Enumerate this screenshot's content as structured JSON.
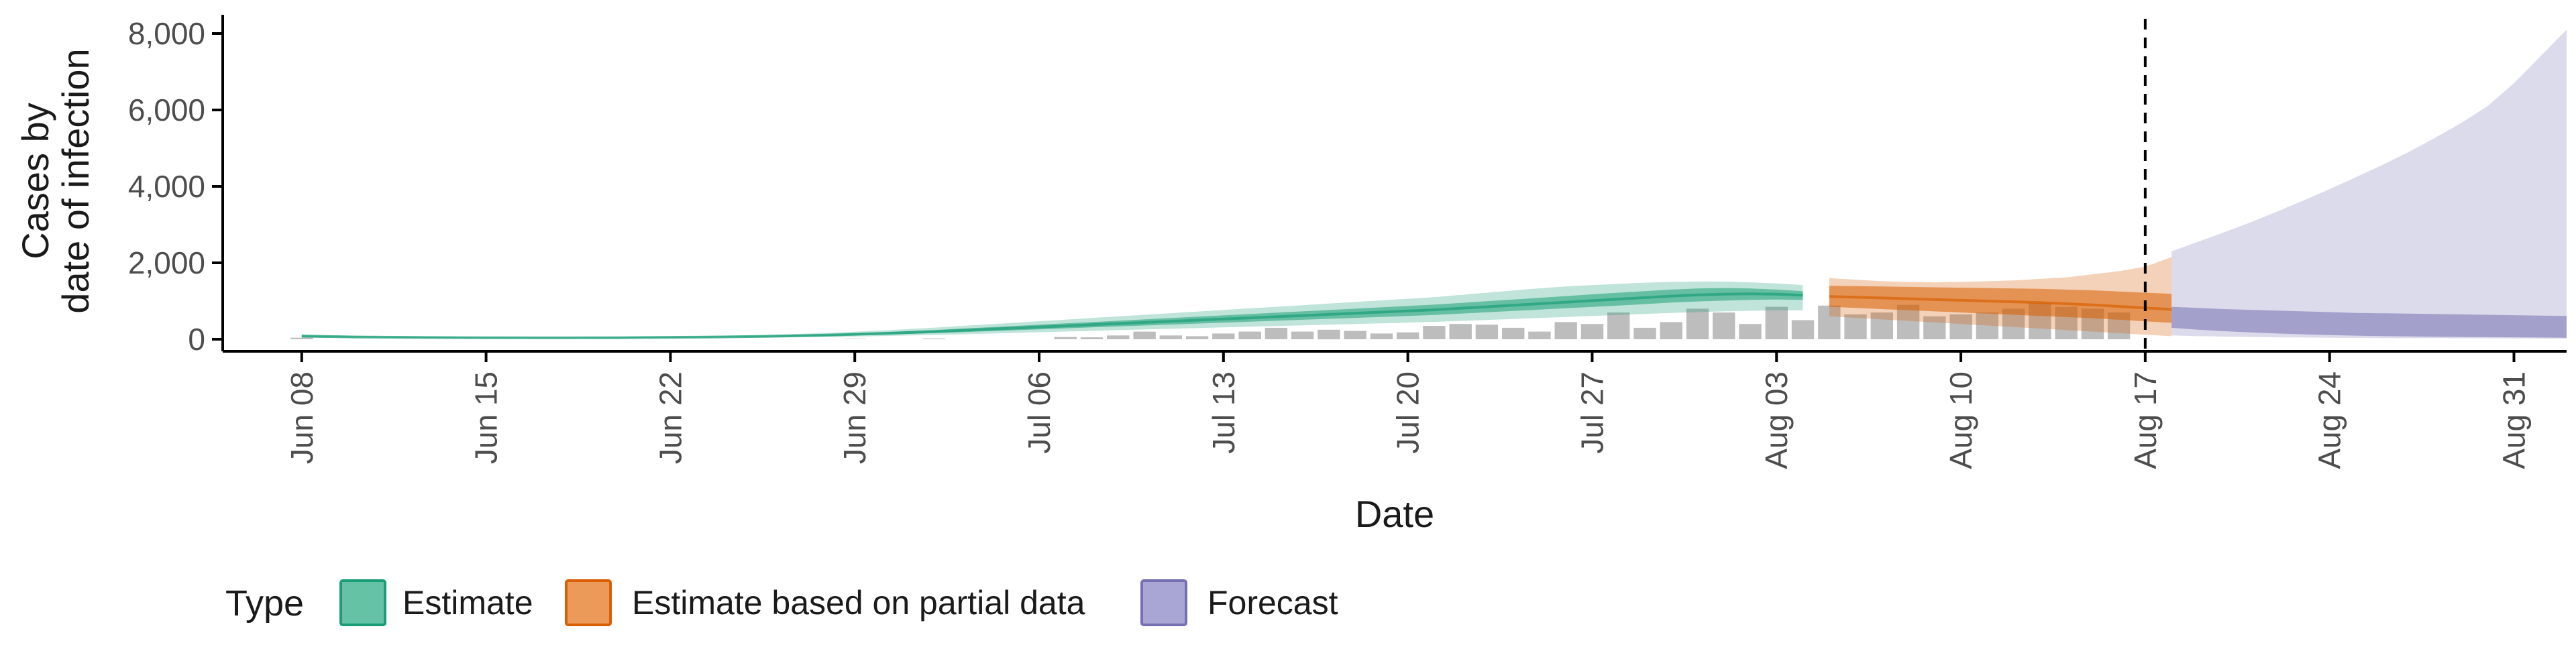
{
  "chart_data": {
    "type": "area",
    "xlabel": "Date",
    "ylabel_lines": [
      "Cases by",
      "date of infection"
    ],
    "ylim": [
      0,
      8000
    ],
    "yticks": [
      0,
      2000,
      4000,
      6000,
      8000
    ],
    "ytick_labels": [
      "0",
      "2,000",
      "4,000",
      "6,000",
      "8,000"
    ],
    "xlim": [
      "2020-06-05",
      "2020-09-02"
    ],
    "xticks": [
      "2020-06-08",
      "2020-06-15",
      "2020-06-22",
      "2020-06-29",
      "2020-07-06",
      "2020-07-13",
      "2020-07-20",
      "2020-07-27",
      "2020-08-03",
      "2020-08-10",
      "2020-08-17",
      "2020-08-24",
      "2020-08-31"
    ],
    "xtick_labels": [
      "Jun 08",
      "Jun 15",
      "Jun 22",
      "Jun 29",
      "Jul 06",
      "Jul 13",
      "Jul 20",
      "Jul 27",
      "Aug 03",
      "Aug 10",
      "Aug 17",
      "Aug 24",
      "Aug 31"
    ],
    "vline": "2020-08-17",
    "grid": false,
    "legend": {
      "position": "bottom",
      "title": "Type",
      "items": [
        {
          "label": "Estimate",
          "fill": "#66c2a5",
          "stroke": "#1b9e77"
        },
        {
          "label": "Estimate based on partial data",
          "fill": "#ec9a5a",
          "stroke": "#d95f02"
        },
        {
          "label": "Forecast",
          "fill": "#a9a6d6",
          "stroke": "#7570b3"
        }
      ]
    },
    "colors": {
      "estimate": "#1b9e77",
      "partial": "#d95f02",
      "forecast": "#7570b3",
      "bars": "#bdbdbd",
      "axis": "#000000"
    },
    "reported_cases": {
      "start": "2020-06-08",
      "values": [
        40,
        0,
        0,
        0,
        0,
        0,
        0,
        0,
        0,
        0,
        0,
        0,
        0,
        0,
        0,
        0,
        0,
        0,
        0,
        0,
        0,
        10,
        0,
        0,
        20,
        0,
        0,
        0,
        0,
        60,
        50,
        100,
        200,
        100,
        80,
        150,
        200,
        300,
        200,
        250,
        220,
        150,
        180,
        350,
        400,
        380,
        300,
        200,
        450,
        400,
        700,
        300,
        450,
        800,
        700,
        400,
        850,
        500,
        880,
        650,
        700,
        900,
        600,
        650,
        700,
        800,
        950,
        850,
        800,
        700
      ]
    },
    "estimate": {
      "start": "2020-06-08",
      "median": [
        80,
        70,
        60,
        55,
        50,
        45,
        42,
        40,
        38,
        37,
        37,
        38,
        40,
        45,
        50,
        55,
        62,
        70,
        80,
        95,
        110,
        130,
        150,
        175,
        200,
        230,
        260,
        290,
        320,
        350,
        380,
        410,
        440,
        470,
        500,
        530,
        560,
        590,
        620,
        650,
        680,
        710,
        740,
        770,
        810,
        850,
        890,
        930,
        970,
        1010,
        1050,
        1090,
        1130,
        1160,
        1180,
        1190,
        1180,
        1150
      ],
      "upper_50": [
        100,
        85,
        72,
        65,
        60,
        55,
        50,
        48,
        46,
        45,
        45,
        46,
        48,
        54,
        60,
        66,
        74,
        84,
        96,
        114,
        132,
        156,
        180,
        210,
        240,
        275,
        310,
        345,
        380,
        415,
        450,
        485,
        520,
        555,
        590,
        625,
        660,
        695,
        730,
        765,
        800,
        835,
        870,
        905,
        950,
        995,
        1040,
        1085,
        1130,
        1175,
        1220,
        1260,
        1300,
        1330,
        1340,
        1330,
        1300,
        1260
      ],
      "lower_50": [
        60,
        55,
        48,
        45,
        40,
        36,
        34,
        32,
        30,
        30,
        30,
        30,
        32,
        36,
        40,
        44,
        50,
        56,
        64,
        76,
        88,
        104,
        120,
        140,
        160,
        185,
        210,
        235,
        260,
        285,
        310,
        335,
        360,
        385,
        410,
        435,
        460,
        485,
        510,
        535,
        560,
        585,
        610,
        635,
        670,
        705,
        740,
        775,
        810,
        845,
        880,
        920,
        960,
        990,
        1010,
        1030,
        1040,
        1030
      ],
      "upper_90": [
        130,
        110,
        95,
        85,
        78,
        70,
        64,
        60,
        58,
        56,
        56,
        58,
        60,
        68,
        76,
        84,
        94,
        106,
        122,
        145,
        168,
        198,
        228,
        265,
        302,
        345,
        388,
        430,
        472,
        514,
        556,
        598,
        640,
        682,
        724,
        766,
        808,
        850,
        892,
        934,
        976,
        1018,
        1060,
        1102,
        1160,
        1218,
        1276,
        1334,
        1380,
        1420,
        1450,
        1480,
        1500,
        1510,
        1510,
        1490,
        1460,
        1420
      ],
      "lower_90": [
        40,
        36,
        32,
        30,
        27,
        24,
        22,
        21,
        20,
        20,
        20,
        20,
        21,
        24,
        27,
        30,
        34,
        38,
        44,
        52,
        60,
        72,
        84,
        98,
        112,
        130,
        148,
        166,
        184,
        202,
        220,
        238,
        256,
        274,
        292,
        310,
        328,
        346,
        364,
        382,
        400,
        418,
        436,
        454,
        480,
        506,
        532,
        558,
        584,
        610,
        636,
        662,
        688,
        710,
        730,
        745,
        755,
        760
      ]
    },
    "partial": {
      "start": "2020-08-05",
      "median": [
        1120,
        1100,
        1080,
        1060,
        1040,
        1020,
        1000,
        980,
        960,
        930,
        900,
        860,
        820,
        780
      ],
      "upper_50": [
        1400,
        1390,
        1380,
        1370,
        1360,
        1350,
        1340,
        1330,
        1320,
        1300,
        1280,
        1250,
        1220,
        1190
      ],
      "lower_50": [
        850,
        820,
        790,
        760,
        730,
        700,
        670,
        640,
        610,
        580,
        550,
        510,
        470,
        430
      ],
      "upper_90": [
        1600,
        1560,
        1520,
        1500,
        1490,
        1500,
        1520,
        1540,
        1580,
        1620,
        1700,
        1780,
        1900,
        2150
      ],
      "lower_90": [
        600,
        560,
        520,
        480,
        440,
        400,
        360,
        320,
        280,
        240,
        200,
        160,
        120,
        80
      ]
    },
    "forecast": {
      "start": "2020-08-18",
      "upper_90": [
        2300,
        2550,
        2800,
        3060,
        3340,
        3630,
        3930,
        4240,
        4560,
        4900,
        5270,
        5660,
        6100,
        6700,
        7400,
        8100
      ],
      "lower_90": [
        100,
        80,
        70,
        60,
        50,
        45,
        40,
        35,
        30,
        28,
        26,
        24,
        22,
        20,
        18,
        16
      ],
      "upper_50": [
        850,
        820,
        790,
        770,
        750,
        730,
        710,
        690,
        680,
        670,
        660,
        650,
        640,
        630,
        620,
        610
      ],
      "lower_50": [
        300,
        250,
        210,
        180,
        150,
        130,
        110,
        95,
        85,
        75,
        65,
        60,
        55,
        50,
        45,
        40
      ]
    }
  }
}
